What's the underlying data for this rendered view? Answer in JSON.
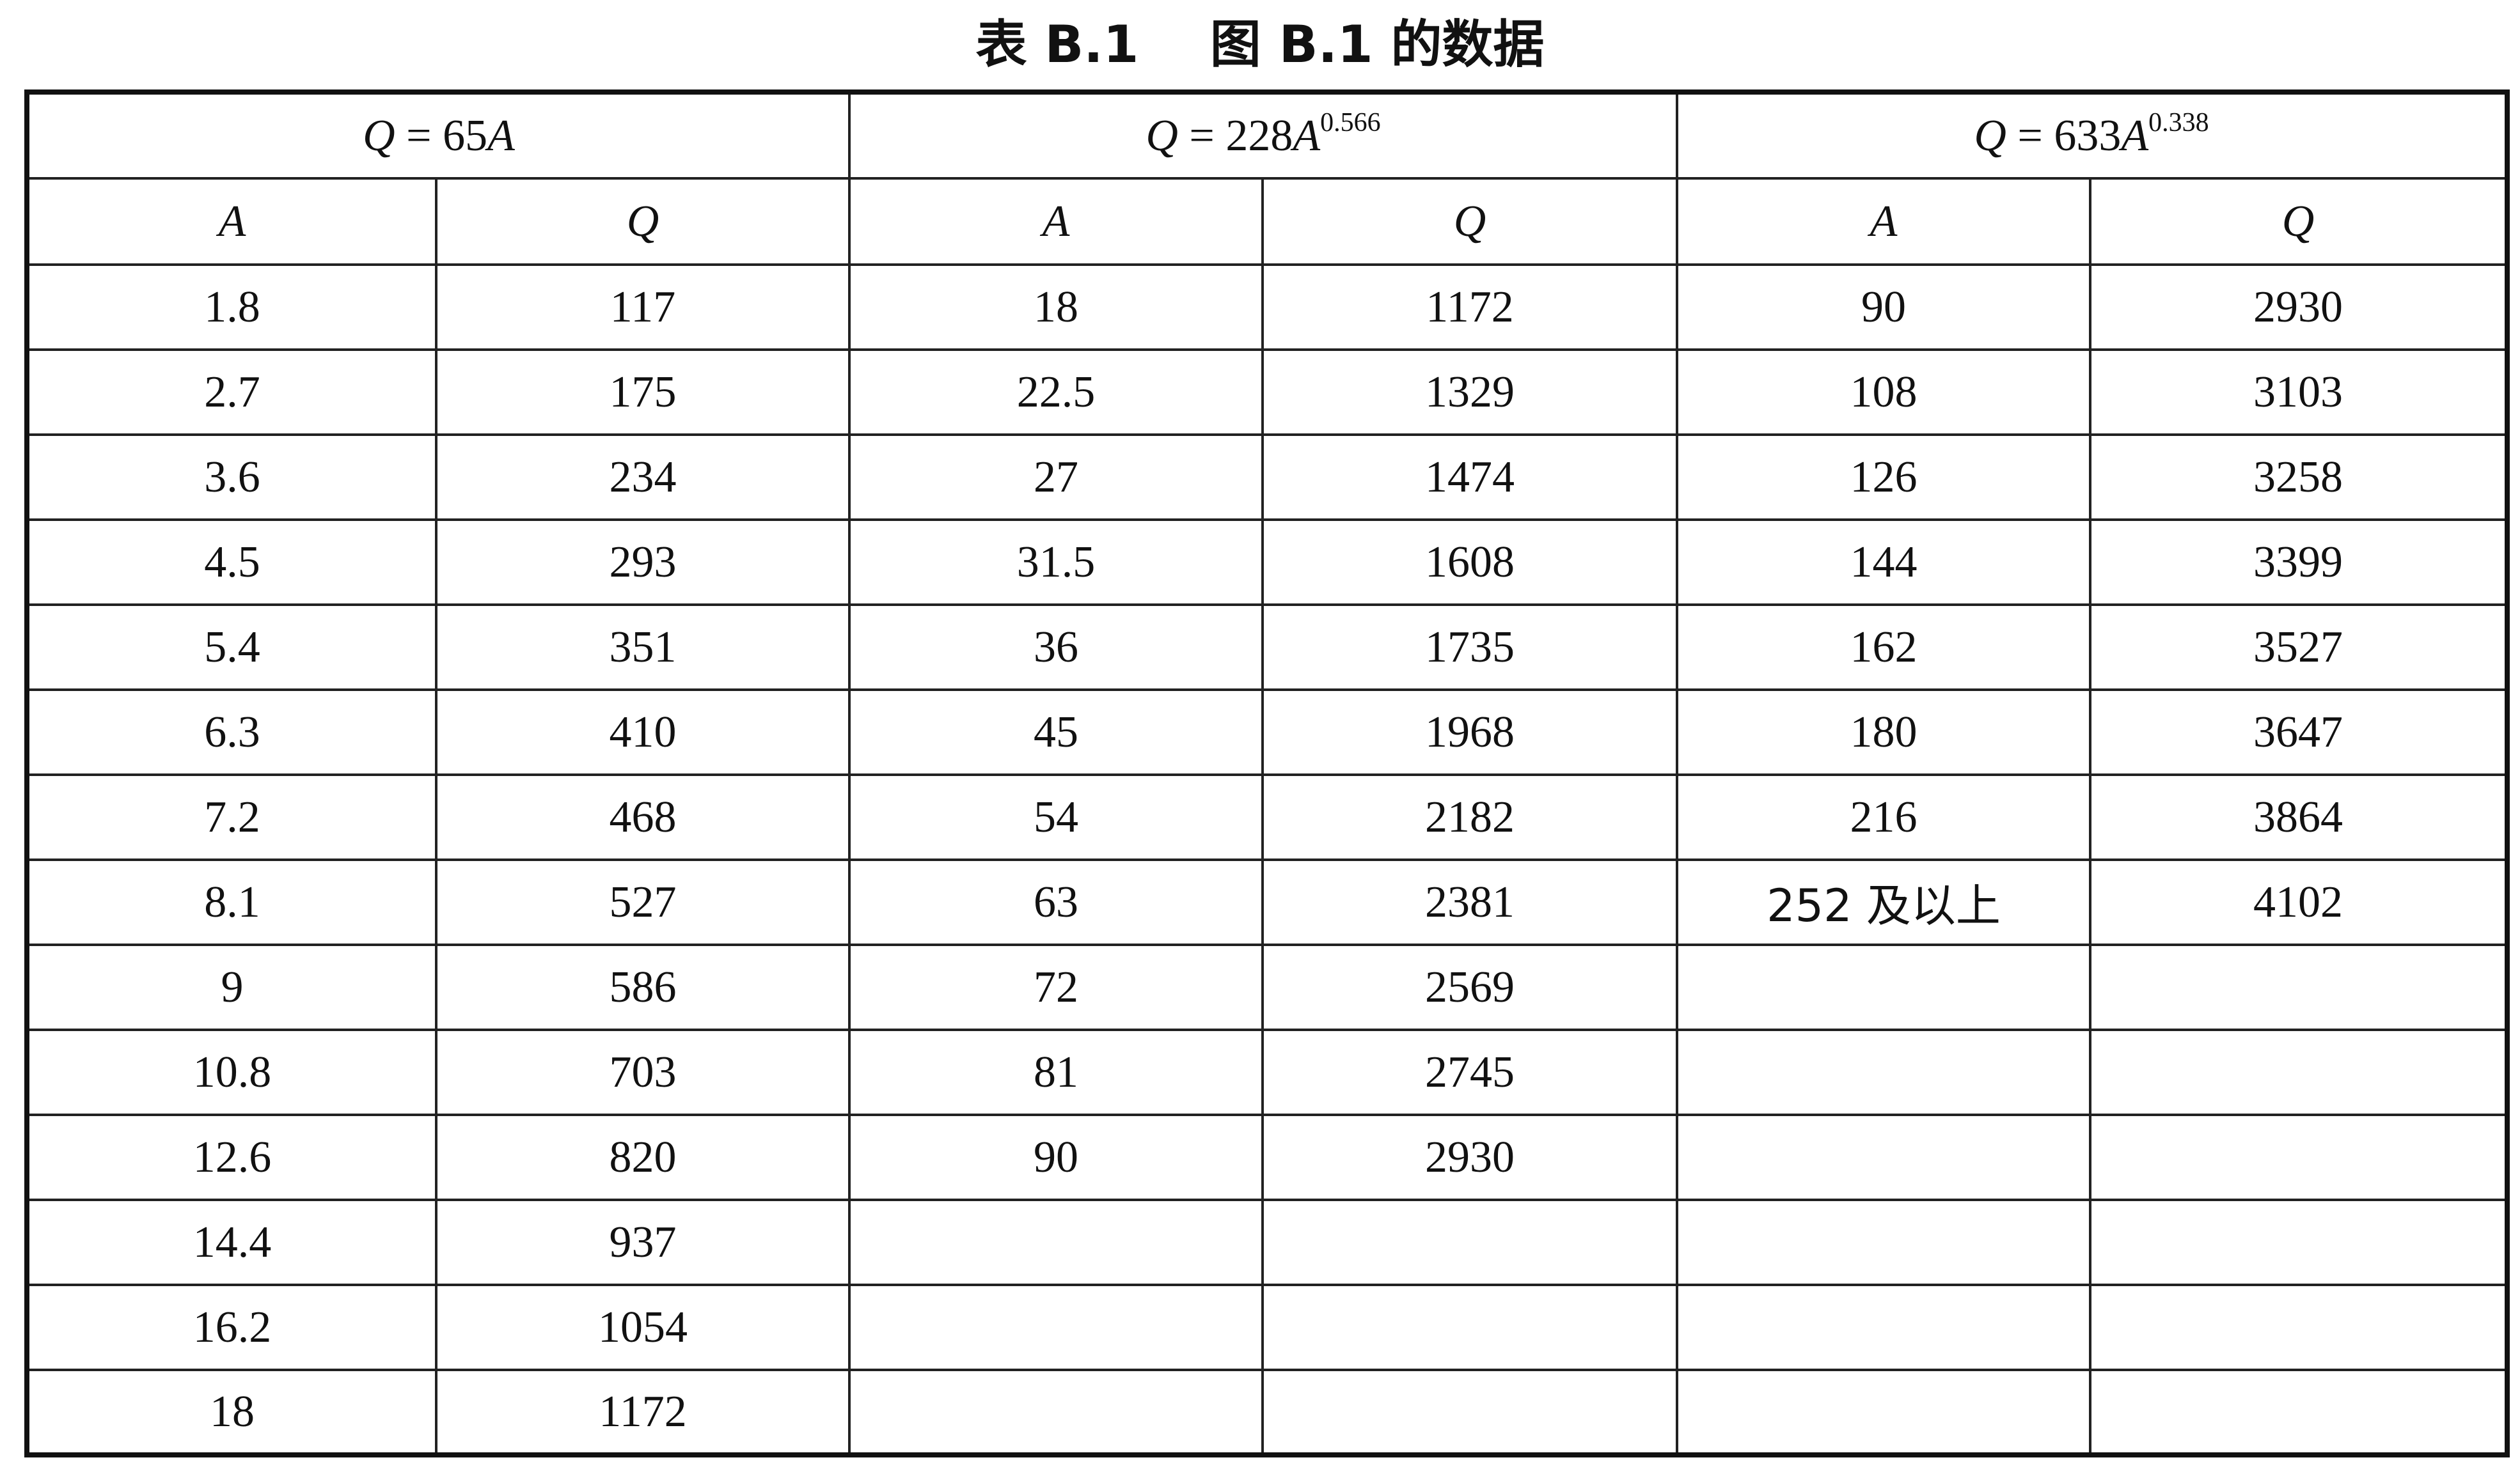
{
  "title": "表 B.1    图 B.1 的数据",
  "groups": [
    {
      "formula": {
        "var": "Q",
        "eq": " = 65",
        "base": "A",
        "exponent": ""
      },
      "col_headers": [
        "A",
        "Q"
      ],
      "rows": [
        [
          "1.8",
          "117"
        ],
        [
          "2.7",
          "175"
        ],
        [
          "3.6",
          "234"
        ],
        [
          "4.5",
          "293"
        ],
        [
          "5.4",
          "351"
        ],
        [
          "6.3",
          "410"
        ],
        [
          "7.2",
          "468"
        ],
        [
          "8.1",
          "527"
        ],
        [
          "9",
          "586"
        ],
        [
          "10.8",
          "703"
        ],
        [
          "12.6",
          "820"
        ],
        [
          "14.4",
          "937"
        ],
        [
          "16.2",
          "1054"
        ],
        [
          "18",
          "1172"
        ]
      ]
    },
    {
      "formula": {
        "var": "Q",
        "eq": " = 228",
        "base": "A",
        "exponent": "0.566"
      },
      "col_headers": [
        "A",
        "Q"
      ],
      "rows": [
        [
          "18",
          "1172"
        ],
        [
          "22.5",
          "1329"
        ],
        [
          "27",
          "1474"
        ],
        [
          "31.5",
          "1608"
        ],
        [
          "36",
          "1735"
        ],
        [
          "45",
          "1968"
        ],
        [
          "54",
          "2182"
        ],
        [
          "63",
          "2381"
        ],
        [
          "72",
          "2569"
        ],
        [
          "81",
          "2745"
        ],
        [
          "90",
          "2930"
        ],
        [
          "",
          ""
        ],
        [
          "",
          ""
        ],
        [
          "",
          ""
        ]
      ]
    },
    {
      "formula": {
        "var": "Q",
        "eq": " = 633",
        "base": "A",
        "exponent": "0.338"
      },
      "col_headers": [
        "A",
        "Q"
      ],
      "rows": [
        [
          "90",
          "2930"
        ],
        [
          "108",
          "3103"
        ],
        [
          "126",
          "3258"
        ],
        [
          "144",
          "3399"
        ],
        [
          "162",
          "3527"
        ],
        [
          "180",
          "3647"
        ],
        [
          "216",
          "3864"
        ],
        [
          "252 及以上",
          "4102"
        ],
        [
          "",
          ""
        ],
        [
          "",
          ""
        ],
        [
          "",
          ""
        ],
        [
          "",
          ""
        ],
        [
          "",
          ""
        ],
        [
          "",
          ""
        ]
      ]
    }
  ]
}
